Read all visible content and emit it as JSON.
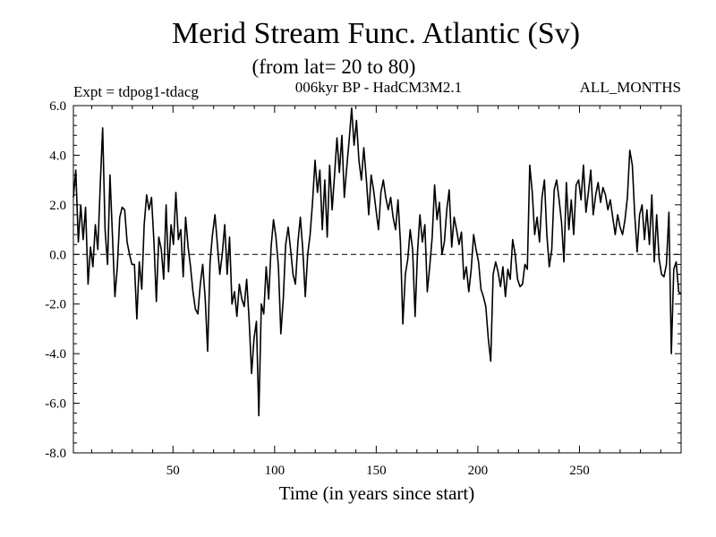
{
  "chart_data": {
    "type": "line",
    "title": "Merid Stream Func. Atlantic (Sv)",
    "subtitle": "(from lat= 20 to 80)",
    "expt_label": "Expt = tdpog1-tdacg",
    "model_label": "006kyr BP - HadCM3M2.1",
    "months_label": "ALL_MONTHS",
    "xlabel": "Time (in years since start)",
    "ylabel": "",
    "xlim": [
      1,
      300
    ],
    "ylim": [
      -8,
      6
    ],
    "xticks": [
      50,
      100,
      150,
      200,
      250
    ],
    "yticks": [
      6,
      4,
      2,
      0,
      -2,
      -4,
      -6,
      -8
    ],
    "ytick_labels": [
      "6.0",
      "4.0",
      "2.0",
      "0.0",
      "-2.0",
      "-4.0",
      "-6.0",
      "-8.0"
    ],
    "reference_line": {
      "y": 0,
      "style": "dashed"
    },
    "series": [
      {
        "name": "Merid Stream Func. Atlantic",
        "values": [
          2.3,
          3.4,
          0.5,
          2.0,
          0.6,
          1.9,
          -1.2,
          0.3,
          -0.5,
          1.2,
          0.2,
          2.8,
          5.1,
          1.0,
          -0.4,
          3.2,
          0.8,
          -1.7,
          -0.5,
          1.5,
          1.9,
          1.8,
          0.5,
          0.0,
          -0.4,
          -0.4,
          -2.6,
          -0.3,
          -1.4,
          1.2,
          2.4,
          1.8,
          2.3,
          0.5,
          -1.9,
          0.7,
          0.2,
          -1.0,
          2.0,
          -0.7,
          1.2,
          0.4,
          2.5,
          0.6,
          1.0,
          -0.9,
          1.5,
          0.3,
          -0.5,
          -1.5,
          -2.2,
          -2.4,
          -1.2,
          -0.4,
          -1.8,
          -3.9,
          -0.3,
          0.8,
          1.6,
          0.4,
          -0.8,
          0.0,
          1.2,
          -0.8,
          0.7,
          -2.0,
          -1.5,
          -2.5,
          -1.2,
          -1.8,
          -2.1,
          -1.0,
          -2.6,
          -4.8,
          -3.4,
          -2.7,
          -6.5,
          -2.0,
          -2.4,
          -0.5,
          -1.8,
          0.3,
          1.4,
          0.7,
          -0.5,
          -3.2,
          -1.8,
          0.4,
          1.1,
          0.2,
          -0.8,
          -1.2,
          0.5,
          1.5,
          0.2,
          -1.7,
          0.0,
          0.8,
          2.1,
          3.8,
          2.5,
          3.4,
          1.0,
          3.0,
          0.7,
          3.6,
          1.8,
          3.2,
          4.7,
          3.3,
          4.8,
          2.3,
          3.5,
          4.6,
          5.9,
          4.4,
          5.4,
          3.8,
          3.0,
          4.3,
          3.1,
          1.6,
          3.2,
          2.6,
          1.8,
          1.0,
          2.5,
          3.0,
          2.3,
          1.8,
          2.3,
          1.5,
          1.0,
          2.2,
          0.5,
          -2.8,
          -0.8,
          -0.2,
          1.0,
          0.2,
          -2.5,
          0.1,
          1.6,
          0.5,
          1.2,
          -1.5,
          -0.5,
          0.7,
          2.8,
          1.4,
          2.1,
          0.0,
          0.5,
          1.8,
          2.6,
          0.3,
          1.5,
          1.0,
          0.4,
          0.9,
          -1.0,
          -0.5,
          -1.5,
          -0.6,
          0.8,
          0.2,
          -0.3,
          -1.4,
          -1.7,
          -2.1,
          -3.4,
          -4.3,
          -0.8,
          -0.3,
          -0.7,
          -1.3,
          -0.5,
          -1.7,
          -0.6,
          -1.0,
          0.6,
          0.0,
          -1.0,
          -1.3,
          -1.2,
          -0.4,
          -0.6,
          3.6,
          2.5,
          0.8,
          1.5,
          0.5,
          2.3,
          3.0,
          0.8,
          -0.5,
          0.2,
          2.6,
          3.0,
          2.2,
          1.3,
          -0.3,
          2.9,
          1.0,
          2.2,
          0.8,
          2.8,
          3.0,
          2.2,
          3.6,
          1.7,
          2.5,
          3.4,
          1.6,
          2.4,
          2.9,
          2.1,
          2.7,
          2.4,
          1.8,
          2.2,
          1.5,
          0.8,
          1.6,
          1.1,
          0.8,
          1.4,
          2.3,
          4.2,
          3.6,
          1.6,
          0.1,
          1.6,
          2.0,
          0.6,
          1.8,
          0.4,
          2.4,
          -0.3,
          1.6,
          -0.2,
          -0.8,
          -0.9,
          -0.4,
          1.7,
          -4.0,
          -0.6,
          -0.3,
          -1.5,
          -1.6
        ]
      }
    ]
  }
}
